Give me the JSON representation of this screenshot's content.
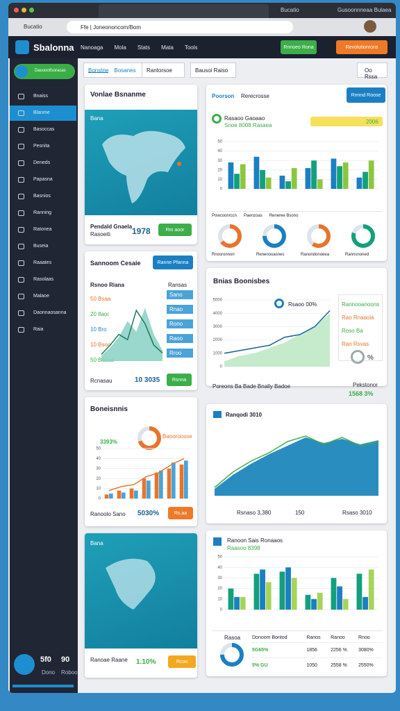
{
  "browser": {
    "tab_title": "Bucatio",
    "tab2": "Gusoonnneaa Bulaea",
    "url": "Ffe | Joneononcom/Bom"
  },
  "app": {
    "logo": "Sbalonna",
    "menu": [
      "Nanoaga",
      "Mola",
      "Stats",
      "Mata",
      "Tools"
    ],
    "btn_green": "Rnnoeo Rona",
    "btn_orange": "Revolutionrons"
  },
  "sidebar": {
    "badge": "Dasooctfsoracas",
    "items": [
      "Bnaiss",
      "Blanme",
      "Basoccas",
      "Pesnita",
      "Deneds",
      "Papasna",
      "Basnios",
      "Ranning",
      "Ratonea",
      "Buseia",
      "Raaates",
      "Rasolaas",
      "Malaoe",
      "Daonnaosanna",
      "Raia"
    ],
    "user_value": "5f0",
    "user_value2": "90",
    "user_name": "Dono",
    "user_role": "Roboo"
  },
  "toolbar": {
    "tabs": [
      "Bonstne",
      "Bosanes"
    ],
    "dropdown": "Rantorsoe",
    "dropdown2": "Bausoi Raiso",
    "right_btn": "Oo Rssa"
  },
  "cards": {
    "map1": {
      "title": "Vonlae Bsnanme",
      "map_label": "Bana",
      "footer_title": "Pendald Gnaela",
      "footer_sub": "Rasoeiti",
      "value": "1978",
      "button": "Rm aoor"
    },
    "trend": {
      "title": "Sannoom Cesaie",
      "button": "Ranne Pfanna",
      "subtitle": "Rsnoo Riana",
      "legend": [
        "50 Bsaa",
        "20 8aoi",
        "10 Bro",
        "10 Bsoo",
        "50 Basaa"
      ],
      "side_head": "Ransas",
      "side": [
        "Sano",
        "Rnao",
        "Rono",
        "Raoo",
        "Rroo"
      ],
      "footer": "Rcnasau",
      "value": "10 3035",
      "button2": "Rsnna"
    },
    "growth": {
      "title": "Boneisnnis",
      "donut_label": "3393%",
      "legend": "Baooroosse",
      "footer": "Ranoolo Sano",
      "value": "5030%",
      "button": "Rs.aa"
    },
    "map2": {
      "title": "Bana",
      "footer": "Ranoae Raane",
      "value": "1.10%",
      "button": "Rcoo"
    },
    "revenue": {
      "tabs": [
        "Poorson",
        "Rerecrosse"
      ],
      "button": "Rnnnd Roose",
      "head": "Rasaoo Gaoaao",
      "head_sub": "Snoe 8008 Rasaea",
      "badge": "2006",
      "donut_titles": [
        "Powcoonrccn",
        "Paenzoas",
        "Reneree Bsono"
      ],
      "donut_labels": [
        "Rnosronnon",
        "Renenooasnes",
        "Ranondonoeea",
        "Rannsnoned"
      ]
    },
    "balance": {
      "title": "Bnias Boonisbes",
      "marker": "Rsaoo 00%",
      "side": [
        "Rannooanoons",
        "Rao Rnaaoia",
        "Roso Ba",
        "Rao Rsvas"
      ],
      "side_value": "%"
    },
    "note": {
      "text": "Poreons Ba Bade Bnally Badoe",
      "right": "Pekstonor",
      "value": "1568 3%"
    },
    "region": {
      "title": "Ranqodi 3010",
      "footer": [
        "Rsnaso 3,380",
        "150",
        "Rsaso 3010"
      ]
    },
    "compare": {
      "title": "Ranoon Sais Ronaaos",
      "sub": "Raasoo 8398",
      "donut_label": "Rasoa",
      "table": {
        "headers": [
          "Donoom Bontod",
          "Ranos",
          "Ranoo",
          "Rnoo"
        ],
        "rows": [
          [
            "5G65%",
            "1856",
            "2256 %",
            "3080%"
          ],
          [
            "5% GU",
            "1050",
            "2558 %",
            "2550%"
          ]
        ]
      }
    }
  },
  "charts": {
    "revenue": {
      "type": "bar",
      "ylim": [
        0,
        50
      ],
      "yticks": [
        0,
        10,
        20,
        30,
        40,
        50
      ],
      "series": [
        {
          "color": "#1b7fc3",
          "values": [
            28,
            34,
            14,
            22,
            32,
            12
          ]
        },
        {
          "color": "#13a07c",
          "values": [
            16,
            20,
            8,
            30,
            24,
            18
          ]
        },
        {
          "color": "#8cc63f",
          "values": [
            26,
            12,
            22,
            10,
            28,
            30
          ]
        }
      ]
    },
    "donuts": {
      "type": "pie",
      "colors": [
        "#e8742c",
        "#1b7fc3",
        "#e8742c",
        "#13a07c"
      ],
      "values": [
        65,
        75,
        60,
        80
      ]
    },
    "trend": {
      "type": "line",
      "ylim": [
        0,
        50
      ],
      "series": [
        {
          "color": "#8fd3c8",
          "area": true,
          "values": [
            4,
            10,
            18,
            30,
            22,
            40,
            20,
            8
          ]
        },
        {
          "color": "#1e7a5a",
          "area": false,
          "values": [
            5,
            12,
            20,
            16,
            38,
            28,
            12,
            6
          ]
        }
      ]
    },
    "growth": {
      "type": "bar",
      "ylim": [
        0,
        50
      ],
      "yticks": [
        0,
        10,
        20,
        30,
        40,
        50
      ],
      "series": [
        {
          "color": "#e8742c",
          "values": [
            4,
            8,
            10,
            20,
            26,
            30,
            34
          ]
        },
        {
          "color": "#4aa3d9",
          "values": [
            5,
            6,
            8,
            18,
            28,
            36,
            38
          ]
        }
      ],
      "line": {
        "color": "#e8742c",
        "values": [
          8,
          12,
          14,
          22,
          26,
          34,
          40
        ]
      }
    },
    "growth_donut": {
      "type": "pie",
      "color": "#e8742c",
      "value": 70
    },
    "balance": {
      "type": "line",
      "ylim": [
        0,
        5000
      ],
      "yticks": [
        0,
        1000,
        2000,
        3000,
        4000,
        5000
      ],
      "series": [
        {
          "color": "#bfe8c6",
          "area": true,
          "values": [
            400,
            800,
            1000,
            1400,
            1800,
            2400,
            3000,
            4000
          ]
        },
        {
          "color": "#1a5f9c",
          "area": false,
          "values": [
            1000,
            1200,
            1400,
            1600,
            2200,
            2400,
            3000,
            4200
          ]
        }
      ]
    },
    "region": {
      "type": "line",
      "ylim": [
        0,
        100
      ],
      "series": [
        {
          "color": "#1381b8",
          "area": true,
          "values": [
            10,
            30,
            46,
            60,
            72,
            84,
            76,
            82,
            74,
            80
          ]
        },
        {
          "color": "#3fae4f",
          "area": false,
          "values": [
            12,
            34,
            50,
            62,
            78,
            86,
            74,
            84,
            72,
            78
          ]
        }
      ]
    },
    "compare": {
      "type": "bar",
      "ylim": [
        0,
        50
      ],
      "yticks": [
        0,
        10,
        20,
        30,
        40,
        50
      ],
      "series": [
        {
          "color": "#13a07c",
          "values": [
            20,
            34,
            36,
            14,
            30,
            34
          ]
        },
        {
          "color": "#1b7fc3",
          "values": [
            12,
            38,
            40,
            10,
            22,
            12
          ]
        },
        {
          "color": "#a6d45a",
          "values": [
            12,
            26,
            30,
            16,
            10,
            38
          ]
        }
      ]
    },
    "compare_donut": {
      "type": "pie",
      "color": "#1b7fc3",
      "value": 75
    }
  }
}
